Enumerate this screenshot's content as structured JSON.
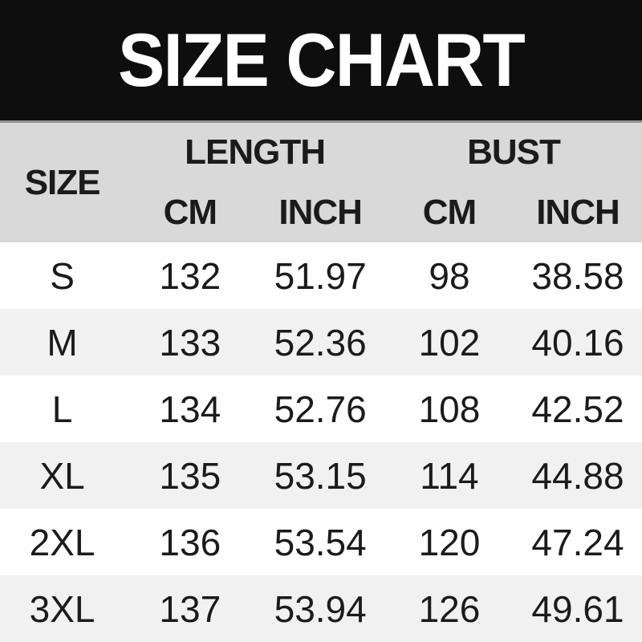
{
  "title": "SIZE CHART",
  "colors": {
    "banner_bg": "#0e0e0e",
    "banner_text": "#ffffff",
    "banner_divider": "#8f8f8f",
    "header_bg": "#d9d9d9",
    "row_bg": "#fefefe",
    "row_alt_bg": "#f1f1f1",
    "text": "#1b1b1b"
  },
  "table": {
    "size_label": "SIZE",
    "groups": [
      {
        "label": "LENGTH",
        "sub": [
          "CM",
          "INCH"
        ]
      },
      {
        "label": "BUST",
        "sub": [
          "CM",
          "INCH"
        ]
      }
    ],
    "rows": [
      {
        "size": "S",
        "length_cm": "132",
        "length_inch": "51.97",
        "bust_cm": "98",
        "bust_inch": "38.58"
      },
      {
        "size": "M",
        "length_cm": "133",
        "length_inch": "52.36",
        "bust_cm": "102",
        "bust_inch": "40.16"
      },
      {
        "size": "L",
        "length_cm": "134",
        "length_inch": "52.76",
        "bust_cm": "108",
        "bust_inch": "42.52"
      },
      {
        "size": "XL",
        "length_cm": "135",
        "length_inch": "53.15",
        "bust_cm": "114",
        "bust_inch": "44.88"
      },
      {
        "size": "2XL",
        "length_cm": "136",
        "length_inch": "53.54",
        "bust_cm": "120",
        "bust_inch": "47.24"
      },
      {
        "size": "3XL",
        "length_cm": "137",
        "length_inch": "53.94",
        "bust_cm": "126",
        "bust_inch": "49.61"
      }
    ]
  },
  "chart_data": {
    "type": "table",
    "title": "SIZE CHART",
    "columns": [
      "SIZE",
      "LENGTH CM",
      "LENGTH INCH",
      "BUST CM",
      "BUST INCH"
    ],
    "rows": [
      [
        "S",
        132,
        51.97,
        98,
        38.58
      ],
      [
        "M",
        133,
        52.36,
        102,
        40.16
      ],
      [
        "L",
        134,
        52.76,
        108,
        42.52
      ],
      [
        "XL",
        135,
        53.15,
        114,
        44.88
      ],
      [
        "2XL",
        136,
        53.54,
        120,
        47.24
      ],
      [
        "3XL",
        137,
        53.94,
        126,
        49.61
      ]
    ]
  }
}
